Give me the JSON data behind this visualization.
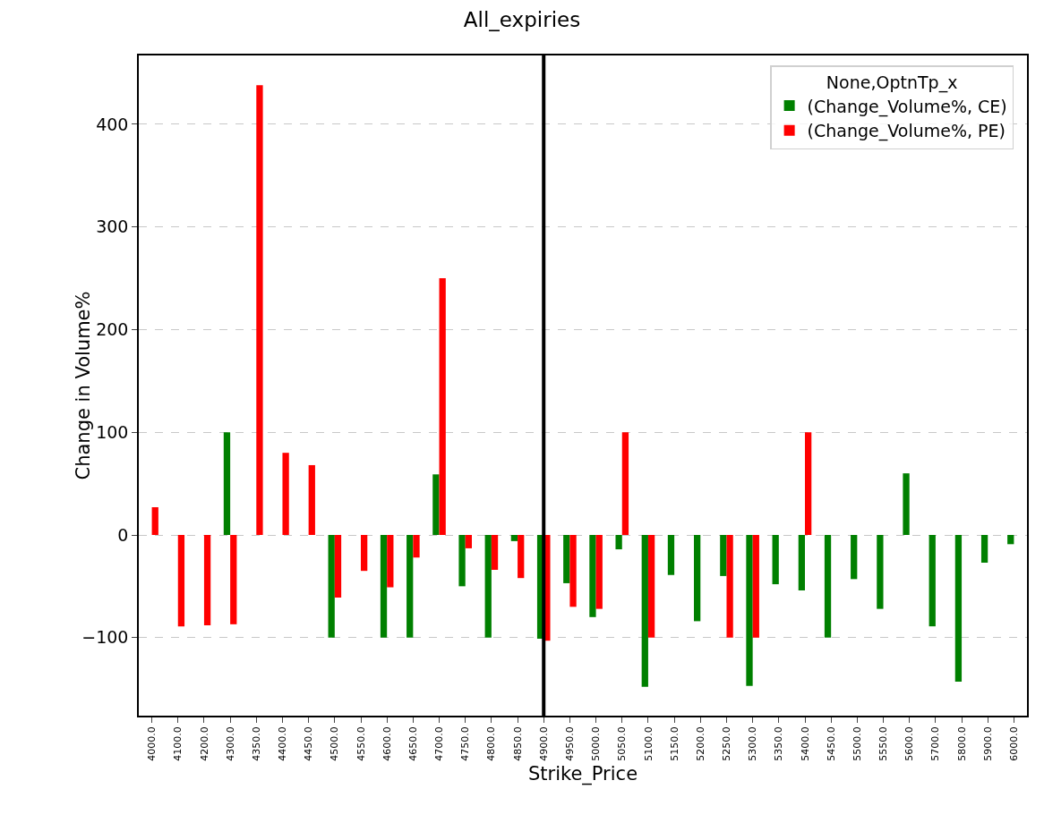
{
  "chart_data": {
    "type": "bar",
    "title": "All_expiries",
    "xlabel": "Strike_Price",
    "ylabel": "Change in Volume%",
    "legend_title": "None,OptnTp_x",
    "categories": [
      "4000.0",
      "4100.0",
      "4200.0",
      "4300.0",
      "4350.0",
      "4400.0",
      "4450.0",
      "4500.0",
      "4550.0",
      "4600.0",
      "4650.0",
      "4700.0",
      "4750.0",
      "4800.0",
      "4850.0",
      "4900.0",
      "4950.0",
      "5000.0",
      "5050.0",
      "5100.0",
      "5150.0",
      "5200.0",
      "5250.0",
      "5300.0",
      "5350.0",
      "5400.0",
      "5450.0",
      "5500.0",
      "5550.0",
      "5600.0",
      "5700.0",
      "5800.0",
      "5900.0",
      "6000.0"
    ],
    "series": [
      {
        "name": "(Change_Volume%, CE)",
        "color": "#008000",
        "values": [
          null,
          null,
          null,
          100,
          null,
          null,
          null,
          -100,
          null,
          -100,
          -100,
          59,
          -50,
          -100,
          -6,
          -101,
          -47,
          -80,
          -14,
          -148,
          -39,
          -84,
          -40,
          -147,
          -48,
          -54,
          -100,
          -43,
          -72,
          60,
          -89,
          -143,
          -27,
          -9
        ]
      },
      {
        "name": "(Change_Volume%, PE)",
        "color": "#ff0000",
        "values": [
          27,
          -89,
          -88,
          -87,
          438,
          80,
          68,
          -61,
          -35,
          -51,
          -22,
          250,
          -13,
          -34,
          -42,
          -103,
          -70,
          -72,
          100,
          -100,
          null,
          null,
          -100,
          -100,
          null,
          100,
          null,
          null,
          null,
          null,
          null,
          null,
          null,
          null
        ]
      }
    ],
    "ylim": [
      -176,
      467
    ],
    "yticks": [
      {
        "value": -100,
        "label": "−100"
      },
      0,
      100,
      200,
      300,
      400
    ],
    "ref_lines": [
      {
        "axis": "x",
        "value": "4900.0",
        "color": "#000000",
        "line_style": "solid"
      }
    ],
    "grid": "y",
    "legend": "top right"
  }
}
